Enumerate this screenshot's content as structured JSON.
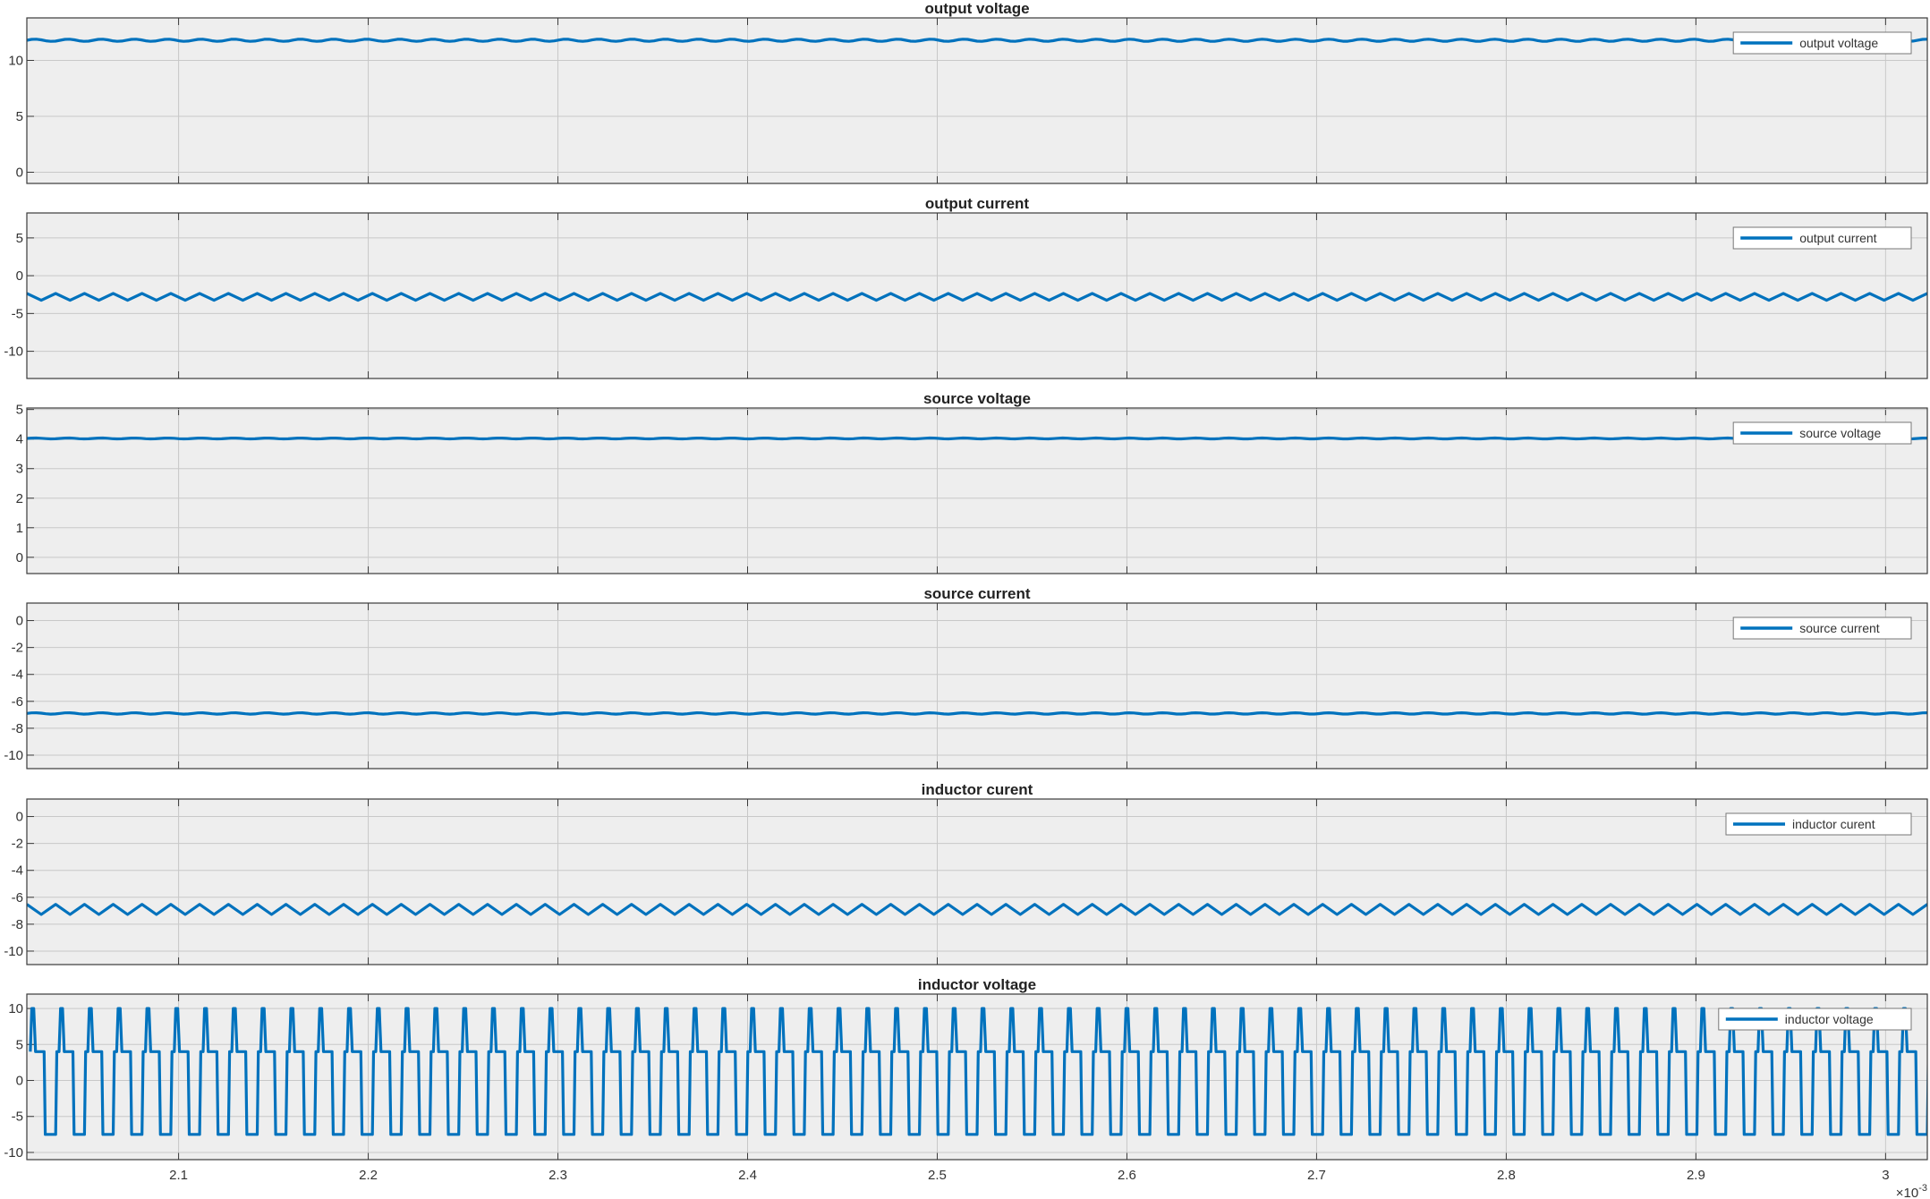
{
  "chart_data": [
    {
      "type": "line",
      "title": "output voltage",
      "legend": "output voltage",
      "legend_position": "top-right",
      "grid": true,
      "xlim": [
        0.00202,
        0.003022
      ],
      "ylim": [
        -1,
        13.8
      ],
      "yticks": [
        0,
        5,
        10
      ],
      "ytick_labels": [
        "0",
        "5",
        "10"
      ],
      "series": [
        {
          "name": "output voltage",
          "color": "#0072BD",
          "waveform": "dc",
          "mean": 11.8,
          "ripple_pk_pk": 0.2,
          "cycles": 1
        }
      ]
    },
    {
      "type": "line",
      "title": "output current",
      "legend": "output current",
      "legend_position": "top-right",
      "grid": true,
      "xlim": [
        0.00202,
        0.003022
      ],
      "ylim": [
        -13.6,
        8.3
      ],
      "yticks": [
        -10,
        -5,
        0,
        5
      ],
      "ytick_labels": [
        "-10",
        "-5",
        "0",
        "5"
      ],
      "series": [
        {
          "name": "output current",
          "color": "#0072BD",
          "waveform": "triangle",
          "mean": -2.8,
          "ripple_pk_pk": 0.9,
          "cycles": 66
        }
      ]
    },
    {
      "type": "line",
      "title": "source voltage",
      "legend": "source voltage",
      "legend_position": "top-right",
      "grid": true,
      "xlim": [
        0.00202,
        0.003022
      ],
      "ylim": [
        -0.55,
        5.05
      ],
      "yticks": [
        0,
        1,
        2,
        3,
        4,
        5
      ],
      "ytick_labels": [
        "0",
        "1",
        "2",
        "3",
        "4",
        "5"
      ],
      "series": [
        {
          "name": "source voltage",
          "color": "#0072BD",
          "waveform": "dc",
          "mean": 4.02,
          "ripple_pk_pk": 0.03,
          "cycles": 1
        }
      ]
    },
    {
      "type": "line",
      "title": "source current",
      "legend": "source current",
      "legend_position": "top-right",
      "grid": true,
      "xlim": [
        0.00202,
        0.003022
      ],
      "ylim": [
        -11,
        1.3
      ],
      "yticks": [
        -10,
        -8,
        -6,
        -4,
        -2,
        0
      ],
      "ytick_labels": [
        "-10",
        "-8",
        "-6",
        "-4",
        "-2",
        "0"
      ],
      "series": [
        {
          "name": "source current",
          "color": "#0072BD",
          "waveform": "dc",
          "mean": -6.9,
          "ripple_pk_pk": 0.1,
          "cycles": 1
        }
      ]
    },
    {
      "type": "line",
      "title": "inductor curent",
      "legend": "inductor curent",
      "legend_position": "top-right",
      "grid": true,
      "xlim": [
        0.00202,
        0.003022
      ],
      "ylim": [
        -11,
        1.3
      ],
      "yticks": [
        -10,
        -8,
        -6,
        -4,
        -2,
        0
      ],
      "ytick_labels": [
        "-10",
        "-8",
        "-6",
        "-4",
        "-2",
        "0"
      ],
      "series": [
        {
          "name": "inductor curent",
          "color": "#0072BD",
          "waveform": "triangle",
          "mean": -6.9,
          "ripple_pk_pk": 0.75,
          "cycles": 66
        }
      ]
    },
    {
      "type": "line",
      "title": "inductor voltage",
      "legend": "inductor voltage",
      "legend_position": "top-right",
      "grid": true,
      "xlim": [
        0.00202,
        0.003022
      ],
      "ylim": [
        -11,
        12
      ],
      "yticks": [
        -10,
        -5,
        0,
        5,
        10
      ],
      "ytick_labels": [
        "-10",
        "-5",
        "0",
        "5",
        "10"
      ],
      "series": [
        {
          "name": "inductor voltage",
          "color": "#0072BD",
          "waveform": "pulse",
          "high": 10,
          "mid": 4,
          "low": -7.5,
          "cycles": 66
        }
      ]
    }
  ],
  "shared_x_axis": {
    "ticks": [
      0.0021,
      0.0022,
      0.0023,
      0.0024,
      0.0025,
      0.0026,
      0.0027,
      0.0028,
      0.0029,
      0.003
    ],
    "tick_labels": [
      "2.1",
      "2.2",
      "2.3",
      "2.4",
      "2.5",
      "2.6",
      "2.7",
      "2.8",
      "2.9",
      "3"
    ],
    "exponent_base": "×10",
    "exponent_power": "-3"
  }
}
